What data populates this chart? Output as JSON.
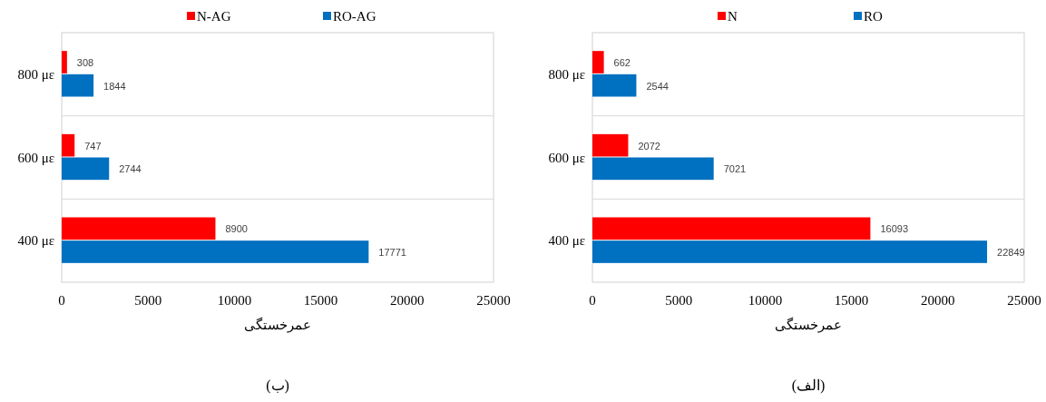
{
  "chart_data": [
    {
      "type": "bar",
      "orientation": "horizontal",
      "categories": [
        "800 με",
        "600 με",
        "400 με"
      ],
      "series": [
        {
          "name": "N-AG",
          "color": "#ff0000",
          "values": [
            308,
            747,
            8900
          ]
        },
        {
          "name": "RO-AG",
          "color": "#0070c0",
          "values": [
            1844,
            2744,
            17771
          ]
        }
      ],
      "xlim": [
        0,
        25000
      ],
      "xticks": [
        0,
        5000,
        10000,
        15000,
        20000,
        25000
      ],
      "xlabel": "عمرخستگی",
      "data_labels": true,
      "grid": "y",
      "legend": "top",
      "annotations": [
        "(ب)"
      ]
    },
    {
      "type": "bar",
      "orientation": "horizontal",
      "categories": [
        "800 με",
        "600 με",
        "400 με"
      ],
      "series": [
        {
          "name": "N",
          "color": "#ff0000",
          "values": [
            662,
            2072,
            16093
          ]
        },
        {
          "name": "RO",
          "color": "#0070c0",
          "values": [
            2544,
            7021,
            22849
          ]
        }
      ],
      "xlim": [
        0,
        25000
      ],
      "xticks": [
        0,
        5000,
        10000,
        15000,
        20000,
        25000
      ],
      "xlabel": "عمرخستگی",
      "data_labels": true,
      "grid": "y",
      "legend": "top",
      "annotations": [
        "(الف)"
      ]
    }
  ]
}
